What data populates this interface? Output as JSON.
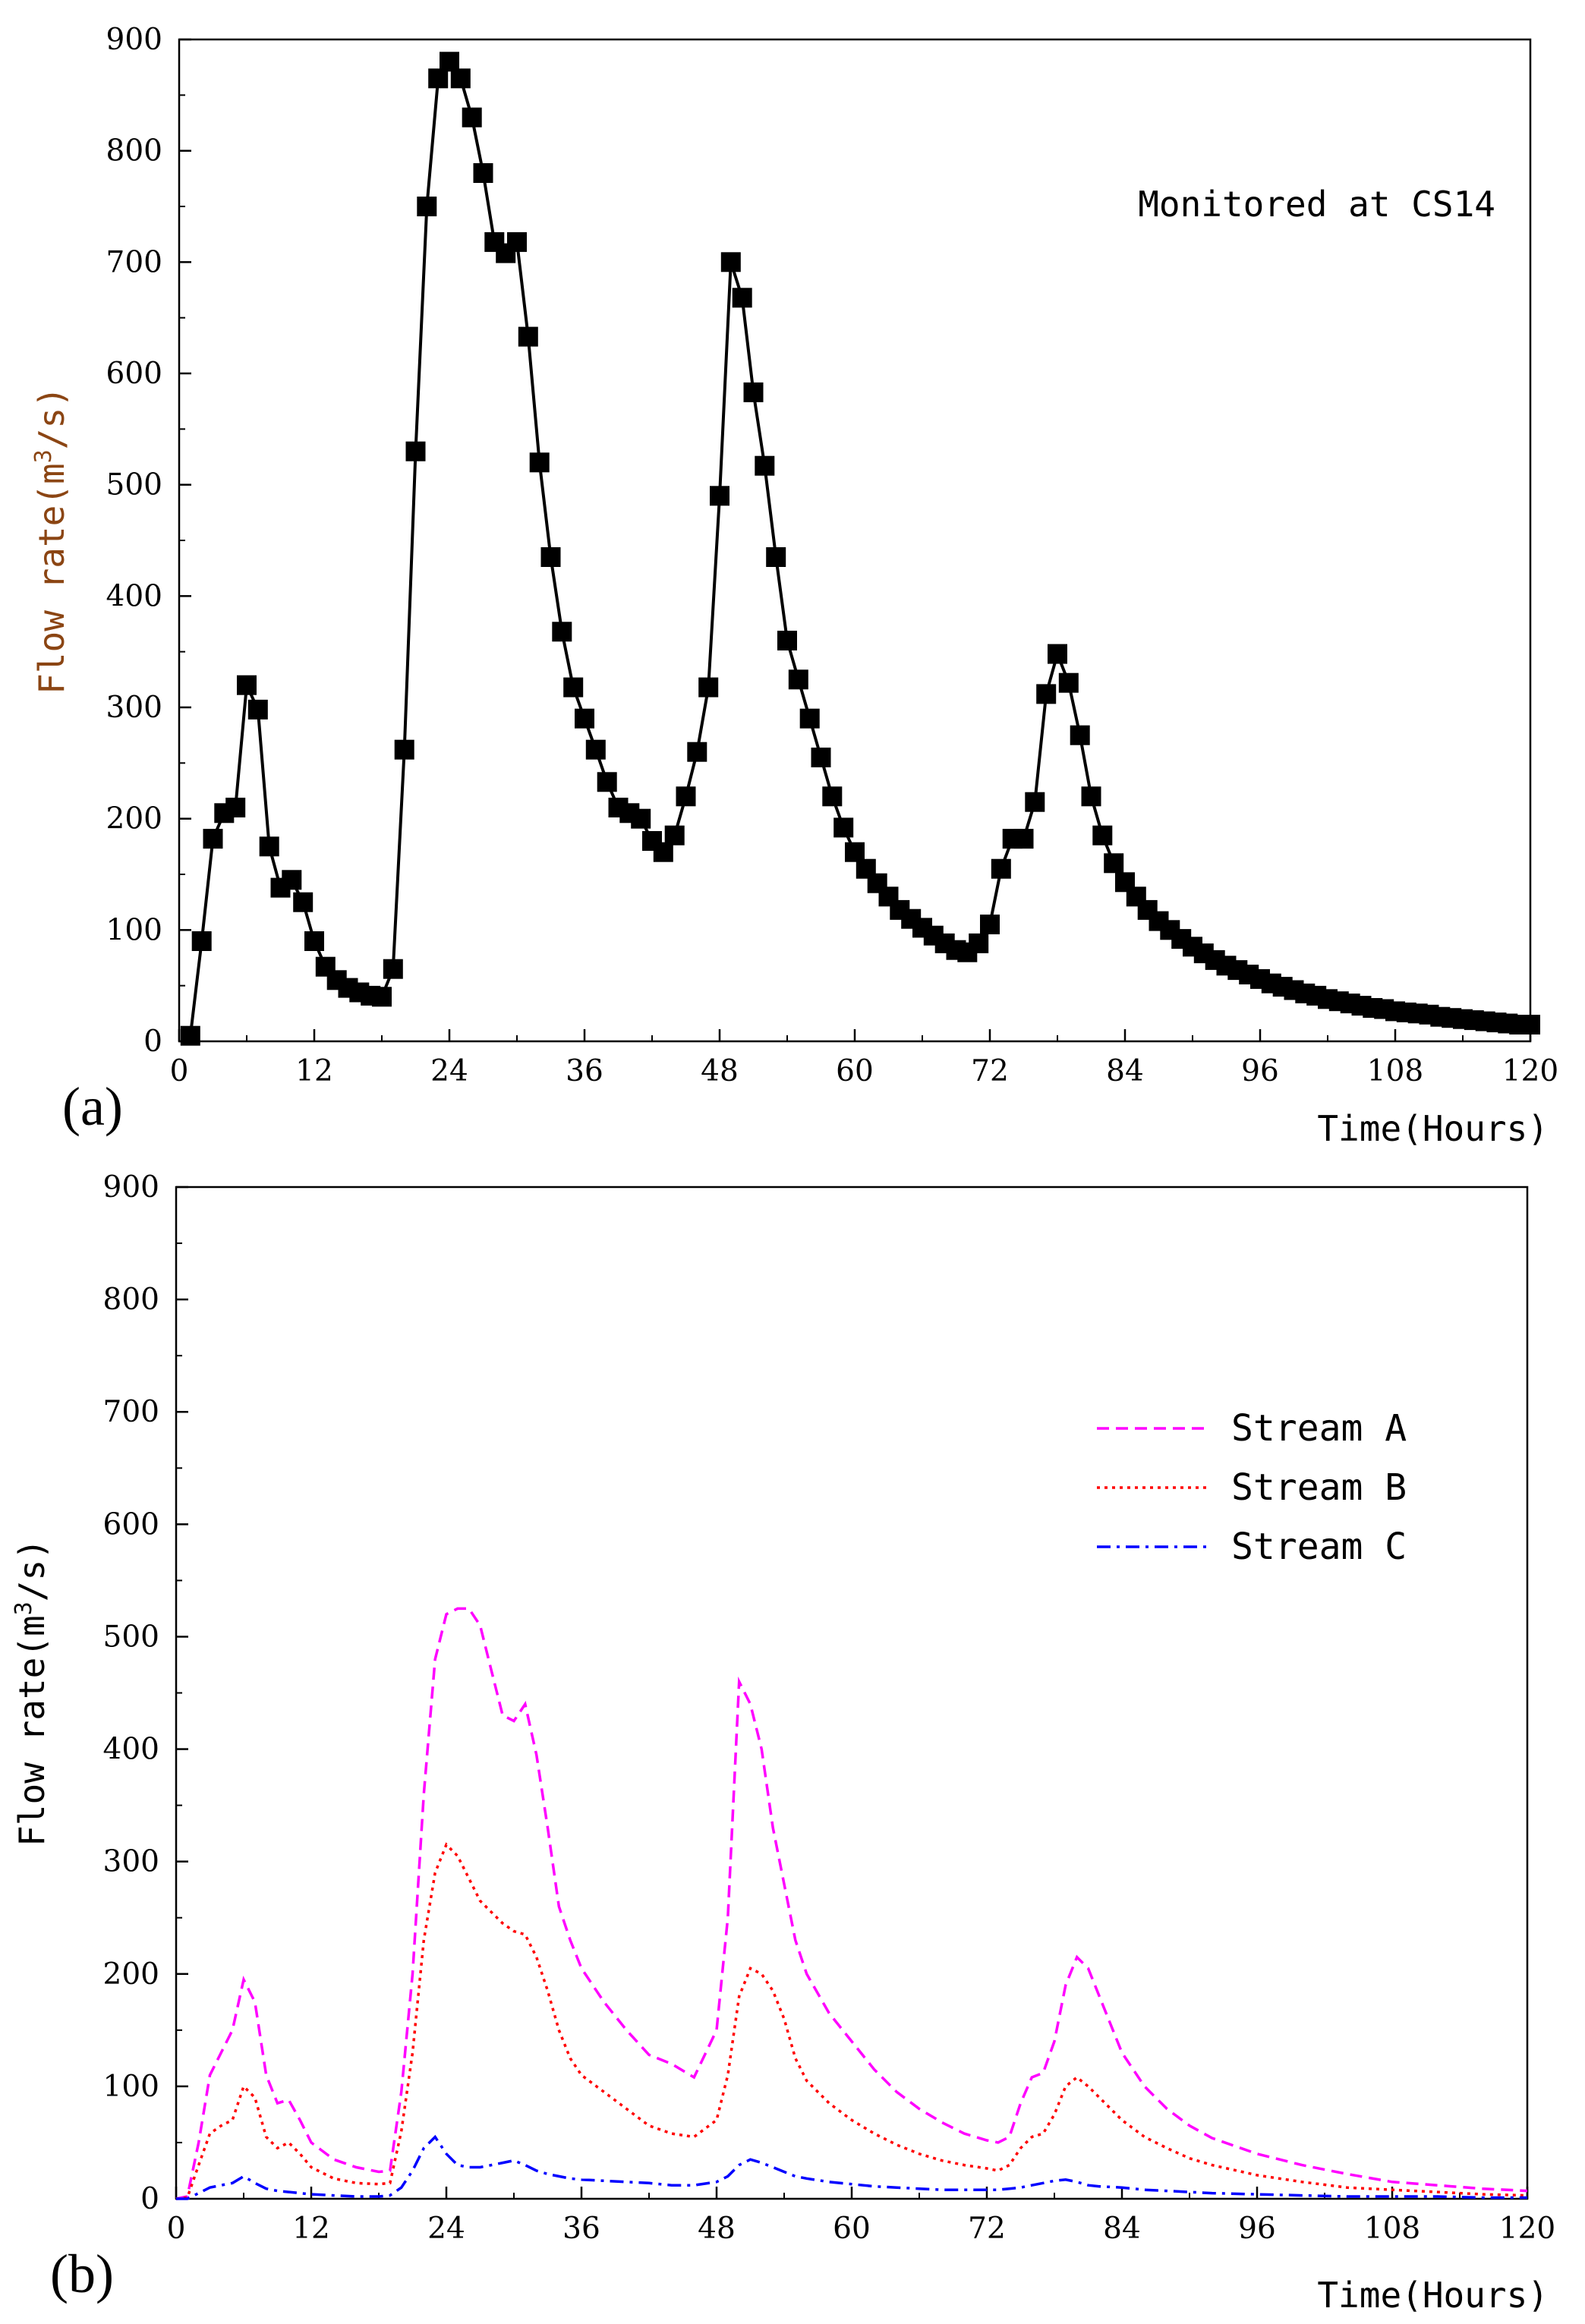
{
  "chart_data": [
    {
      "panel": "(a)",
      "type": "line",
      "annotation": "Monitored at CS14",
      "xlabel": "Time(Hours)",
      "ylabel_prefix": "Flow rate(m",
      "ylabel_sup": "3",
      "ylabel_suffix": "/s)",
      "xlim": [
        0,
        120
      ],
      "ylim": [
        0,
        900
      ],
      "xticks": [
        "0",
        "12",
        "24",
        "36",
        "48",
        "60",
        "72",
        "84",
        "96",
        "108",
        "120"
      ],
      "yticks": [
        "0",
        "100",
        "200",
        "300",
        "400",
        "500",
        "600",
        "700",
        "800",
        "900"
      ],
      "series": [
        {
          "name": "Monitored at CS14",
          "color": "#000000",
          "marker": "square",
          "x": [
            1,
            2,
            3,
            4,
            5,
            6,
            7,
            8,
            9,
            10,
            11,
            12,
            13,
            14,
            15,
            16,
            17,
            18,
            19,
            20,
            21,
            22,
            23,
            24,
            25,
            26,
            27,
            28,
            29,
            30,
            31,
            32,
            33,
            34,
            35,
            36,
            37,
            38,
            39,
            40,
            41,
            42,
            43,
            44,
            45,
            46,
            47,
            48,
            49,
            50,
            51,
            52,
            53,
            54,
            55,
            56,
            57,
            58,
            59,
            60,
            61,
            62,
            63,
            64,
            65,
            66,
            67,
            68,
            69,
            70,
            71,
            72,
            73,
            74,
            75,
            76,
            77,
            78,
            79,
            80,
            81,
            82,
            83,
            84,
            85,
            86,
            87,
            88,
            89,
            90,
            91,
            92,
            93,
            94,
            95,
            96,
            97,
            98,
            99,
            100,
            101,
            102,
            103,
            104,
            105,
            106,
            107,
            108,
            109,
            110,
            111,
            112,
            113,
            114,
            115,
            116,
            117,
            118,
            119,
            120
          ],
          "y": [
            5,
            90,
            182,
            205,
            210,
            320,
            298,
            175,
            138,
            145,
            125,
            90,
            67,
            55,
            48,
            44,
            41,
            40,
            65,
            262,
            530,
            750,
            865,
            880,
            865,
            830,
            780,
            718,
            708,
            718,
            633,
            520,
            435,
            368,
            318,
            290,
            262,
            233,
            210,
            205,
            200,
            180,
            170,
            185,
            220,
            260,
            318,
            490,
            700,
            668,
            583,
            517,
            435,
            360,
            325,
            290,
            255,
            220,
            192,
            170,
            155,
            142,
            130,
            118,
            110,
            102,
            95,
            88,
            82,
            80,
            88,
            105,
            155,
            182,
            182,
            215,
            312,
            348,
            322,
            275,
            220,
            185,
            160,
            143,
            130,
            118,
            108,
            100,
            92,
            85,
            79,
            73,
            68,
            64,
            60,
            56,
            52,
            49,
            46,
            43,
            41,
            38,
            36,
            34,
            32,
            30,
            29,
            27,
            26,
            25,
            24,
            22,
            21,
            20,
            19,
            18,
            17,
            16,
            15,
            15
          ]
        }
      ]
    },
    {
      "panel": "(b)",
      "type": "line",
      "xlabel": "Time(Hours)",
      "ylabel_prefix": "Flow rate(m",
      "ylabel_sup": "3",
      "ylabel_suffix": "/s)",
      "xlim": [
        0,
        120
      ],
      "ylim": [
        0,
        900
      ],
      "xticks": [
        "0",
        "12",
        "24",
        "36",
        "48",
        "60",
        "72",
        "84",
        "96",
        "108",
        "120"
      ],
      "yticks": [
        "0",
        "100",
        "200",
        "300",
        "400",
        "500",
        "600",
        "700",
        "800",
        "900"
      ],
      "x": [
        0,
        1,
        2,
        3,
        4,
        5,
        6,
        7,
        8,
        9,
        10,
        11,
        12,
        14,
        16,
        18,
        19,
        20,
        21,
        22,
        23,
        24,
        25,
        26,
        27,
        28,
        29,
        30,
        31,
        32,
        33,
        34,
        35,
        36,
        38,
        40,
        42,
        44,
        46,
        48,
        49,
        50,
        51,
        52,
        53,
        54,
        55,
        56,
        58,
        60,
        62,
        64,
        66,
        68,
        70,
        72,
        73,
        74,
        75,
        76,
        77,
        78,
        79,
        80,
        81,
        82,
        84,
        86,
        88,
        90,
        92,
        96,
        100,
        104,
        108,
        112,
        116,
        120
      ],
      "series": [
        {
          "name": "Stream A",
          "color": "#ff00ff",
          "dash": "dashed",
          "values": [
            0,
            2,
            50,
            110,
            130,
            150,
            195,
            175,
            110,
            85,
            88,
            70,
            50,
            35,
            28,
            24,
            25,
            95,
            200,
            360,
            480,
            520,
            525,
            525,
            510,
            470,
            430,
            425,
            440,
            395,
            330,
            260,
            230,
            205,
            175,
            150,
            128,
            120,
            108,
            150,
            250,
            460,
            440,
            400,
            330,
            280,
            230,
            200,
            165,
            140,
            115,
            95,
            80,
            68,
            58,
            52,
            50,
            55,
            85,
            108,
            112,
            140,
            190,
            215,
            205,
            180,
            130,
            100,
            80,
            65,
            54,
            40,
            30,
            22,
            15,
            12,
            9,
            7
          ]
        },
        {
          "name": "Stream B",
          "color": "#ff0000",
          "dash": "dotted",
          "values": [
            0,
            1,
            30,
            58,
            65,
            70,
            100,
            90,
            55,
            45,
            50,
            40,
            28,
            18,
            14,
            13,
            14,
            60,
            130,
            230,
            290,
            315,
            305,
            285,
            265,
            255,
            245,
            238,
            235,
            215,
            185,
            150,
            125,
            110,
            95,
            80,
            65,
            58,
            55,
            70,
            110,
            180,
            205,
            200,
            185,
            160,
            125,
            105,
            85,
            70,
            58,
            48,
            40,
            34,
            30,
            27,
            25,
            30,
            45,
            55,
            58,
            75,
            100,
            108,
            100,
            90,
            70,
            55,
            45,
            36,
            30,
            21,
            15,
            10,
            8,
            6,
            4,
            3
          ]
        },
        {
          "name": "Stream C",
          "color": "#0000ff",
          "dash": "dashdot",
          "values": [
            0,
            0,
            5,
            10,
            12,
            14,
            20,
            14,
            9,
            7,
            6,
            5,
            4,
            3,
            2,
            2,
            3,
            10,
            25,
            45,
            55,
            40,
            30,
            28,
            28,
            30,
            32,
            34,
            30,
            25,
            22,
            20,
            18,
            17,
            16,
            15,
            14,
            12,
            12,
            15,
            20,
            30,
            35,
            32,
            28,
            24,
            20,
            18,
            15,
            13,
            11,
            10,
            9,
            8,
            8,
            8,
            8,
            9,
            10,
            12,
            14,
            16,
            17,
            15,
            12,
            11,
            10,
            8,
            7,
            6,
            5,
            4,
            3,
            2,
            2,
            2,
            1,
            1
          ]
        }
      ]
    }
  ]
}
